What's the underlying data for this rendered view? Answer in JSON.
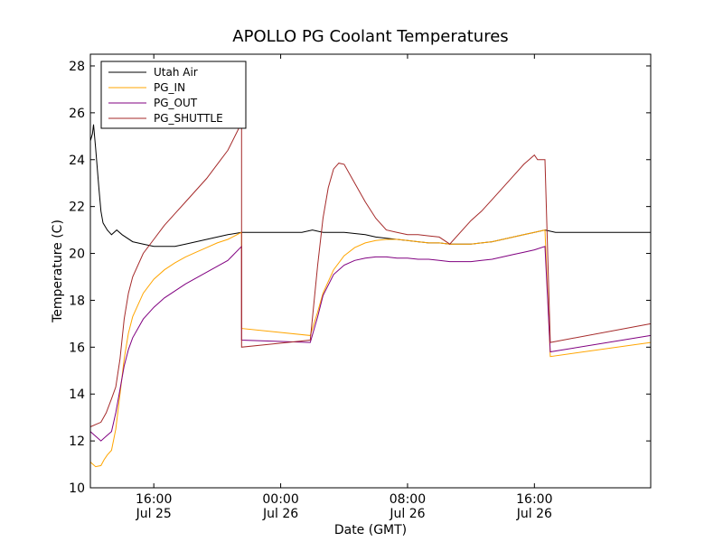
{
  "chart_data": {
    "type": "line",
    "title": "APOLLO PG Coolant Temperatures",
    "xlabel": "Date (GMT)",
    "ylabel": "Temperature (C)",
    "ylim": [
      10,
      28.5
    ],
    "xlim_hours": [
      0,
      53
    ],
    "y_ticks": [
      10,
      12,
      14,
      16,
      18,
      20,
      22,
      24,
      26,
      28
    ],
    "x_ticks": [
      {
        "hour": 6,
        "line1": "16:00",
        "line2": "Jul 25"
      },
      {
        "hour": 18,
        "line1": "00:00",
        "line2": "Jul 26"
      },
      {
        "hour": 30,
        "line1": "08:00",
        "line2": "Jul 26"
      },
      {
        "hour": 42,
        "line1": "16:00",
        "line2": "Jul 26"
      }
    ],
    "legend_position": "top-left",
    "series": [
      {
        "name": "Utah Air",
        "color": "#000000",
        "points": [
          [
            0,
            24.8
          ],
          [
            0.2,
            25.1
          ],
          [
            0.3,
            25.5
          ],
          [
            0.5,
            24.5
          ],
          [
            0.8,
            22.8
          ],
          [
            1.0,
            21.8
          ],
          [
            1.2,
            21.3
          ],
          [
            1.6,
            21.0
          ],
          [
            2.0,
            20.8
          ],
          [
            2.5,
            21.0
          ],
          [
            3,
            20.8
          ],
          [
            4,
            20.5
          ],
          [
            5,
            20.4
          ],
          [
            6,
            20.3
          ],
          [
            7,
            20.3
          ],
          [
            8,
            20.3
          ],
          [
            9,
            20.4
          ],
          [
            10,
            20.5
          ],
          [
            11,
            20.6
          ],
          [
            12,
            20.7
          ],
          [
            13,
            20.8
          ],
          [
            14.3,
            20.9
          ],
          [
            20,
            20.9
          ],
          [
            21,
            21.0
          ],
          [
            22,
            20.9
          ],
          [
            23,
            20.9
          ],
          [
            24,
            20.9
          ],
          [
            25,
            20.85
          ],
          [
            26,
            20.8
          ],
          [
            27,
            20.7
          ],
          [
            28,
            20.65
          ],
          [
            29,
            20.6
          ],
          [
            30,
            20.55
          ],
          [
            31,
            20.5
          ],
          [
            32,
            20.45
          ],
          [
            33,
            20.45
          ],
          [
            34,
            20.4
          ],
          [
            35,
            20.4
          ],
          [
            36,
            20.4
          ],
          [
            37,
            20.45
          ],
          [
            38,
            20.5
          ],
          [
            39,
            20.6
          ],
          [
            40,
            20.7
          ],
          [
            41,
            20.8
          ],
          [
            42,
            20.9
          ],
          [
            43,
            21.0
          ],
          [
            44,
            20.9
          ],
          [
            53,
            20.9
          ]
        ]
      },
      {
        "name": "PG_IN",
        "color": "#ffa500",
        "points": [
          [
            0,
            11.1
          ],
          [
            0.5,
            10.9
          ],
          [
            1.0,
            10.95
          ],
          [
            1.3,
            11.2
          ],
          [
            1.6,
            11.4
          ],
          [
            2.0,
            11.6
          ],
          [
            2.4,
            12.5
          ],
          [
            2.8,
            14.0
          ],
          [
            3.2,
            15.5
          ],
          [
            3.6,
            16.6
          ],
          [
            4,
            17.3
          ],
          [
            5,
            18.3
          ],
          [
            6,
            18.9
          ],
          [
            7,
            19.3
          ],
          [
            8,
            19.6
          ],
          [
            9,
            19.85
          ],
          [
            10,
            20.05
          ],
          [
            11,
            20.25
          ],
          [
            12,
            20.45
          ],
          [
            13,
            20.6
          ],
          [
            14.3,
            20.9
          ],
          [
            14.3,
            16.8
          ],
          [
            20.8,
            16.5
          ],
          [
            21.5,
            17.5
          ],
          [
            22,
            18.3
          ],
          [
            23,
            19.3
          ],
          [
            24,
            19.9
          ],
          [
            25,
            20.25
          ],
          [
            26,
            20.45
          ],
          [
            27,
            20.55
          ],
          [
            28,
            20.6
          ],
          [
            29,
            20.6
          ],
          [
            30,
            20.55
          ],
          [
            31,
            20.5
          ],
          [
            32,
            20.45
          ],
          [
            33,
            20.45
          ],
          [
            34,
            20.4
          ],
          [
            35,
            20.4
          ],
          [
            36,
            20.4
          ],
          [
            37,
            20.45
          ],
          [
            38,
            20.5
          ],
          [
            39,
            20.6
          ],
          [
            40,
            20.7
          ],
          [
            41,
            20.8
          ],
          [
            42,
            20.9
          ],
          [
            43,
            21.0
          ],
          [
            43.5,
            15.6
          ],
          [
            53,
            16.2
          ]
        ]
      },
      {
        "name": "PG_OUT",
        "color": "#800080",
        "points": [
          [
            0,
            12.4
          ],
          [
            0.5,
            12.2
          ],
          [
            1.0,
            12.0
          ],
          [
            1.5,
            12.2
          ],
          [
            2.0,
            12.4
          ],
          [
            2.4,
            13.2
          ],
          [
            2.8,
            14.2
          ],
          [
            3.2,
            15.2
          ],
          [
            3.6,
            15.9
          ],
          [
            4,
            16.4
          ],
          [
            5,
            17.2
          ],
          [
            6,
            17.7
          ],
          [
            7,
            18.1
          ],
          [
            8,
            18.4
          ],
          [
            9,
            18.7
          ],
          [
            10,
            18.95
          ],
          [
            11,
            19.2
          ],
          [
            12,
            19.45
          ],
          [
            13,
            19.7
          ],
          [
            14.3,
            20.3
          ],
          [
            14.3,
            16.3
          ],
          [
            20.8,
            16.2
          ],
          [
            21.5,
            17.3
          ],
          [
            22,
            18.2
          ],
          [
            23,
            19.1
          ],
          [
            24,
            19.5
          ],
          [
            25,
            19.7
          ],
          [
            26,
            19.8
          ],
          [
            27,
            19.85
          ],
          [
            28,
            19.85
          ],
          [
            29,
            19.8
          ],
          [
            30,
            19.8
          ],
          [
            31,
            19.75
          ],
          [
            32,
            19.75
          ],
          [
            33,
            19.7
          ],
          [
            34,
            19.65
          ],
          [
            35,
            19.65
          ],
          [
            36,
            19.65
          ],
          [
            37,
            19.7
          ],
          [
            38,
            19.75
          ],
          [
            39,
            19.85
          ],
          [
            40,
            19.95
          ],
          [
            41,
            20.05
          ],
          [
            42,
            20.15
          ],
          [
            43,
            20.3
          ],
          [
            43.5,
            15.8
          ],
          [
            53,
            16.5
          ]
        ]
      },
      {
        "name": "PG_SHUTTLE",
        "color": "#a52a2a",
        "points": [
          [
            0,
            12.6
          ],
          [
            0.5,
            12.7
          ],
          [
            1.0,
            12.8
          ],
          [
            1.5,
            13.2
          ],
          [
            2.0,
            13.8
          ],
          [
            2.4,
            14.3
          ],
          [
            2.8,
            15.5
          ],
          [
            3.2,
            17.2
          ],
          [
            3.6,
            18.3
          ],
          [
            4,
            19.0
          ],
          [
            5,
            20.0
          ],
          [
            6,
            20.6
          ],
          [
            7,
            21.2
          ],
          [
            8,
            21.7
          ],
          [
            9,
            22.2
          ],
          [
            10,
            22.7
          ],
          [
            11,
            23.2
          ],
          [
            12,
            23.8
          ],
          [
            13,
            24.4
          ],
          [
            14.0,
            25.3
          ],
          [
            14.3,
            26.0
          ],
          [
            14.3,
            16.0
          ],
          [
            20.8,
            16.3
          ],
          [
            21.5,
            19.5
          ],
          [
            22,
            21.5
          ],
          [
            22.5,
            22.8
          ],
          [
            23,
            23.6
          ],
          [
            23.5,
            23.85
          ],
          [
            24,
            23.8
          ],
          [
            25,
            23.0
          ],
          [
            26,
            22.2
          ],
          [
            27,
            21.5
          ],
          [
            28,
            21.0
          ],
          [
            29,
            20.9
          ],
          [
            30,
            20.8
          ],
          [
            31,
            20.8
          ],
          [
            32,
            20.75
          ],
          [
            33,
            20.7
          ],
          [
            34,
            20.4
          ],
          [
            35,
            20.9
          ],
          [
            36,
            21.4
          ],
          [
            37,
            21.8
          ],
          [
            38,
            22.3
          ],
          [
            39,
            22.8
          ],
          [
            40,
            23.3
          ],
          [
            41,
            23.8
          ],
          [
            42,
            24.2
          ],
          [
            42.3,
            24.0
          ],
          [
            43,
            24.0
          ],
          [
            43.5,
            16.2
          ],
          [
            53,
            17.0
          ]
        ]
      }
    ]
  }
}
